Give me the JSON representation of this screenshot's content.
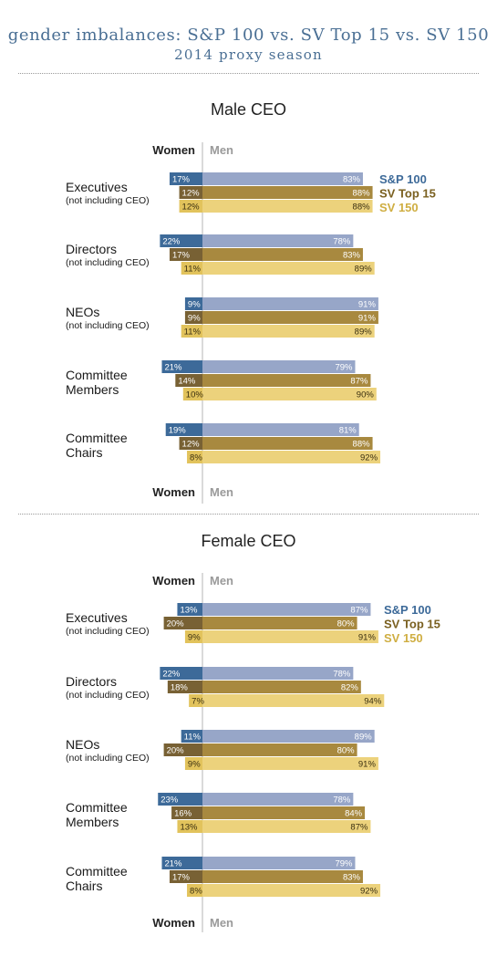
{
  "title": {
    "line1": "gender imbalances: S&P 100 vs. SV Top 15 vs. SV 150",
    "line2": "2014 proxy season"
  },
  "colors": {
    "sp100_women": "#3d6a99",
    "sp100_men": "#97a6c8",
    "svtop15_women": "#786134",
    "svtop15_men": "#a8893f",
    "sv150_women": "#e2c35c",
    "sv150_men": "#ecd27c",
    "legend_sp100": "#3d6a99",
    "legend_svtop15": "#7a6020",
    "legend_sv150": "#cfae42",
    "women_label": "#222222",
    "men_label": "#9a9a9a"
  },
  "axis_labels": {
    "women": "Women",
    "men": "Men"
  },
  "chart_data": [
    {
      "type": "bar",
      "title": "Male CEO",
      "categories": [
        {
          "label": "Executives",
          "sublabel": "(not including CEO)"
        },
        {
          "label": "Directors",
          "sublabel": "(not including CEO)"
        },
        {
          "label": "NEOs",
          "sublabel": "(not including CEO)"
        },
        {
          "label": "Committee",
          "sublabel": "Members"
        },
        {
          "label": "Committee",
          "sublabel": "Chairs"
        }
      ],
      "series": [
        {
          "name": "S&P 100",
          "women": [
            17,
            22,
            9,
            21,
            19
          ],
          "men": [
            83,
            78,
            91,
            79,
            81
          ]
        },
        {
          "name": "SV Top 15",
          "women": [
            12,
            17,
            9,
            14,
            12
          ],
          "men": [
            88,
            83,
            91,
            87,
            88
          ]
        },
        {
          "name": "SV 150",
          "women": [
            12,
            11,
            11,
            10,
            8
          ],
          "men": [
            88,
            89,
            89,
            90,
            92
          ]
        }
      ]
    },
    {
      "type": "bar",
      "title": "Female CEO",
      "categories": [
        {
          "label": "Executives",
          "sublabel": "(not including CEO)"
        },
        {
          "label": "Directors",
          "sublabel": "(not including CEO)"
        },
        {
          "label": "NEOs",
          "sublabel": "(not including CEO)"
        },
        {
          "label": "Committee",
          "sublabel": "Members"
        },
        {
          "label": "Committee",
          "sublabel": "Chairs"
        }
      ],
      "series": [
        {
          "name": "S&P 100",
          "women": [
            13,
            22,
            11,
            23,
            21
          ],
          "men": [
            87,
            78,
            89,
            78,
            79
          ]
        },
        {
          "name": "SV Top 15",
          "women": [
            20,
            18,
            20,
            16,
            17
          ],
          "men": [
            80,
            82,
            80,
            84,
            83
          ]
        },
        {
          "name": "SV 150",
          "women": [
            9,
            7,
            9,
            13,
            8
          ],
          "men": [
            91,
            94,
            91,
            87,
            92
          ]
        }
      ]
    }
  ]
}
